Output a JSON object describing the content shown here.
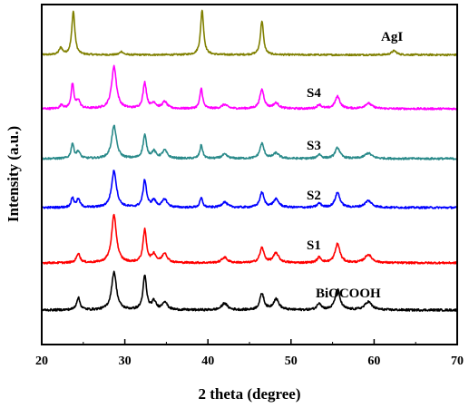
{
  "chart_data": {
    "type": "line",
    "xlabel": "2 theta (degree)",
    "ylabel": "Intensity (a.u.)",
    "xlim": [
      20,
      70
    ],
    "xticks": [
      20,
      30,
      40,
      50,
      60,
      70
    ],
    "y_scale": "arbitrary, vertically offset stacked patterns",
    "grid": false,
    "legend": "labels placed on curves",
    "series": [
      {
        "name": "AgI",
        "color": "#808000",
        "offset": 5,
        "baseline": 0.25,
        "noise": 0.03,
        "peaks": [
          [
            22.3,
            0.25,
            0.25
          ],
          [
            23.8,
            1.6,
            0.22
          ],
          [
            29.6,
            0.12,
            0.25
          ],
          [
            39.3,
            1.65,
            0.22
          ],
          [
            46.5,
            1.25,
            0.22
          ],
          [
            62.4,
            0.15,
            0.35
          ]
        ]
      },
      {
        "name": "S4",
        "color": "#ff00ff",
        "offset": 4,
        "baseline": 0.1,
        "noise": 0.035,
        "peaks": [
          [
            22.4,
            0.15,
            0.2
          ],
          [
            23.7,
            0.9,
            0.2
          ],
          [
            24.4,
            0.3,
            0.25
          ],
          [
            28.7,
            1.55,
            0.35
          ],
          [
            32.4,
            0.95,
            0.25
          ],
          [
            33.5,
            0.2,
            0.3
          ],
          [
            34.8,
            0.25,
            0.35
          ],
          [
            39.2,
            0.75,
            0.2
          ],
          [
            42,
            0.15,
            0.4
          ],
          [
            46.5,
            0.7,
            0.3
          ],
          [
            48.2,
            0.2,
            0.4
          ],
          [
            53.4,
            0.15,
            0.3
          ],
          [
            55.6,
            0.45,
            0.35
          ],
          [
            59.3,
            0.2,
            0.5
          ]
        ]
      },
      {
        "name": "S3",
        "color": "#2a8a8a",
        "offset": 3,
        "baseline": 0.1,
        "noise": 0.035,
        "peaks": [
          [
            23.7,
            0.55,
            0.2
          ],
          [
            24.4,
            0.25,
            0.25
          ],
          [
            28.7,
            1.2,
            0.35
          ],
          [
            32.4,
            0.85,
            0.25
          ],
          [
            33.5,
            0.25,
            0.3
          ],
          [
            34.8,
            0.3,
            0.35
          ],
          [
            39.2,
            0.5,
            0.2
          ],
          [
            42,
            0.15,
            0.4
          ],
          [
            46.5,
            0.55,
            0.3
          ],
          [
            48.2,
            0.2,
            0.4
          ],
          [
            53.4,
            0.15,
            0.3
          ],
          [
            55.6,
            0.4,
            0.35
          ],
          [
            59.3,
            0.2,
            0.5
          ]
        ]
      },
      {
        "name": "S2",
        "color": "#0000ff",
        "offset": 2,
        "baseline": 0.1,
        "noise": 0.035,
        "peaks": [
          [
            23.7,
            0.35,
            0.2
          ],
          [
            24.4,
            0.3,
            0.25
          ],
          [
            28.7,
            1.35,
            0.35
          ],
          [
            32.4,
            1.0,
            0.25
          ],
          [
            33.5,
            0.25,
            0.3
          ],
          [
            34.8,
            0.3,
            0.35
          ],
          [
            39.2,
            0.35,
            0.2
          ],
          [
            42,
            0.2,
            0.4
          ],
          [
            46.5,
            0.55,
            0.3
          ],
          [
            48.2,
            0.3,
            0.4
          ],
          [
            53.4,
            0.15,
            0.3
          ],
          [
            55.6,
            0.55,
            0.35
          ],
          [
            59.3,
            0.25,
            0.5
          ]
        ]
      },
      {
        "name": "S1",
        "color": "#ff0000",
        "offset": 1,
        "baseline": 0.1,
        "noise": 0.035,
        "peaks": [
          [
            24.4,
            0.35,
            0.25
          ],
          [
            28.7,
            1.75,
            0.35
          ],
          [
            32.4,
            1.2,
            0.25
          ],
          [
            33.5,
            0.3,
            0.3
          ],
          [
            34.8,
            0.35,
            0.35
          ],
          [
            42,
            0.2,
            0.4
          ],
          [
            46.5,
            0.55,
            0.3
          ],
          [
            48.2,
            0.35,
            0.4
          ],
          [
            53.4,
            0.2,
            0.3
          ],
          [
            55.6,
            0.7,
            0.35
          ],
          [
            59.3,
            0.3,
            0.5
          ]
        ]
      },
      {
        "name": "BiOCOOH",
        "color": "#000000",
        "offset": 0,
        "baseline": 0.1,
        "noise": 0.04,
        "peaks": [
          [
            24.4,
            0.45,
            0.25
          ],
          [
            28.7,
            1.4,
            0.35
          ],
          [
            32.4,
            1.25,
            0.25
          ],
          [
            33.5,
            0.3,
            0.3
          ],
          [
            34.8,
            0.3,
            0.35
          ],
          [
            42,
            0.25,
            0.4
          ],
          [
            46.5,
            0.6,
            0.3
          ],
          [
            48.2,
            0.4,
            0.4
          ],
          [
            53.4,
            0.25,
            0.3
          ],
          [
            55.6,
            0.75,
            0.35
          ],
          [
            59.3,
            0.3,
            0.5
          ]
        ]
      }
    ]
  }
}
